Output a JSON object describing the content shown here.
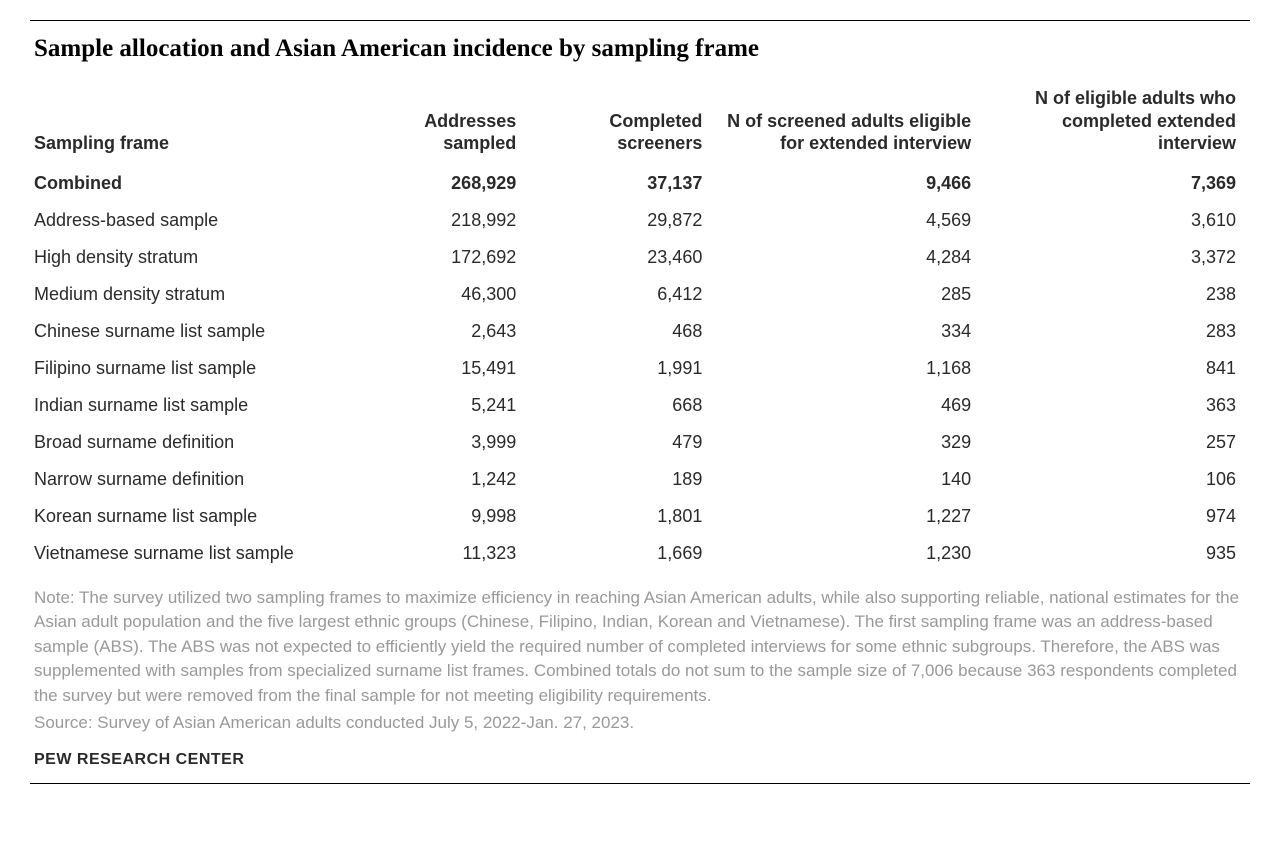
{
  "title": "Sample allocation and Asian American incidence by sampling frame",
  "table": {
    "columns": [
      "Sampling frame",
      "Addresses sampled",
      "Completed screeners",
      "N of screened adults eligible for extended interview",
      "N of eligible adults who completed extended interview"
    ],
    "rows": [
      {
        "label": "Combined",
        "bold": true,
        "c1": "268,929",
        "c2": "37,137",
        "c3": "9,466",
        "c4": "7,369"
      },
      {
        "label": "Address-based sample",
        "bold": false,
        "c1": "218,992",
        "c2": "29,872",
        "c3": "4,569",
        "c4": "3,610"
      },
      {
        "label": "High density stratum",
        "bold": false,
        "c1": "172,692",
        "c2": "23,460",
        "c3": "4,284",
        "c4": "3,372"
      },
      {
        "label": "Medium density stratum",
        "bold": false,
        "c1": "46,300",
        "c2": "6,412",
        "c3": "285",
        "c4": "238"
      },
      {
        "label": "Chinese surname list sample",
        "bold": false,
        "c1": "2,643",
        "c2": "468",
        "c3": "334",
        "c4": "283"
      },
      {
        "label": "Filipino surname list sample",
        "bold": false,
        "c1": "15,491",
        "c2": "1,991",
        "c3": "1,168",
        "c4": "841"
      },
      {
        "label": "Indian surname list sample",
        "bold": false,
        "c1": "5,241",
        "c2": "668",
        "c3": "469",
        "c4": "363"
      },
      {
        "label": "Broad surname definition",
        "bold": false,
        "c1": "3,999",
        "c2": "479",
        "c3": "329",
        "c4": "257"
      },
      {
        "label": "Narrow surname definition",
        "bold": false,
        "c1": "1,242",
        "c2": "189",
        "c3": "140",
        "c4": "106"
      },
      {
        "label": "Korean surname list sample",
        "bold": false,
        "c1": "9,998",
        "c2": "1,801",
        "c3": "1,227",
        "c4": "974"
      },
      {
        "label": "Vietnamese surname list sample",
        "bold": false,
        "c1": "11,323",
        "c2": "1,669",
        "c3": "1,230",
        "c4": "935"
      }
    ]
  },
  "note": "Note: The survey utilized two sampling frames to maximize efficiency in reaching Asian American adults, while also supporting reliable, national estimates for the Asian adult population and the five largest ethnic groups (Chinese, Filipino, Indian, Korean and Vietnamese). The first sampling frame was an address-based sample (ABS). The ABS was not expected to efficiently yield the required number of completed interviews for some ethnic subgroups. Therefore, the ABS was supplemented with samples from specialized surname list frames. Combined totals do not sum to the sample size of 7,006 because 363 respondents completed the survey but were removed from the final sample for not meeting eligibility requirements.",
  "source": "Source: Survey of Asian American adults conducted July 5, 2022-Jan. 27, 2023.",
  "attribution": "PEW RESEARCH CENTER"
}
